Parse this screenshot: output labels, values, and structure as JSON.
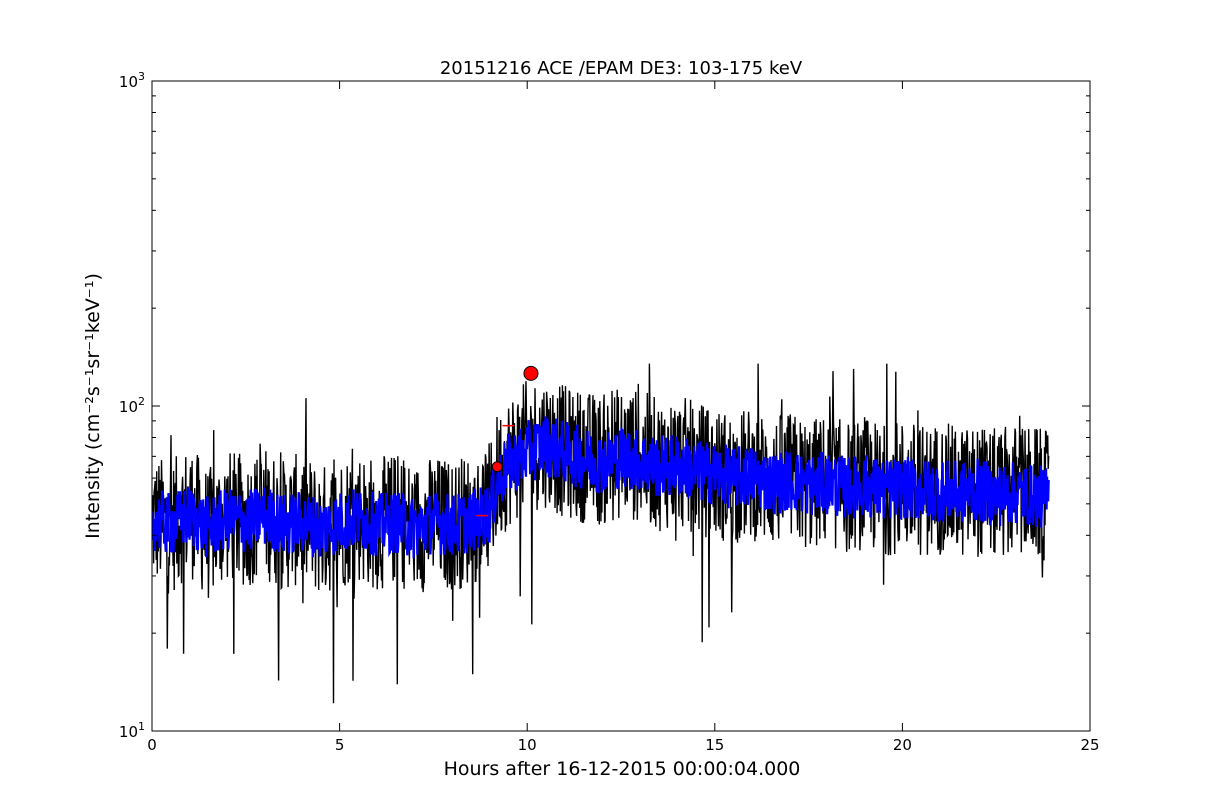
{
  "chart_data": {
    "type": "line",
    "title": "20151216 ACE /EPAM DE3: 103-175 keV",
    "xlabel": "Hours after 16-12-2015 00:00:04.000",
    "ylabel": "Intensity (cm⁻²s⁻¹sr⁻¹keV⁻¹)",
    "xlim": [
      0,
      25
    ],
    "ylim": [
      10,
      1000
    ],
    "yscale": "log",
    "grid": false,
    "x_ticks": [
      0,
      5,
      10,
      15,
      20,
      25
    ],
    "x_tick_labels": [
      "0",
      "5",
      "10",
      "15",
      "20",
      "25"
    ],
    "y_ticks": [
      {
        "base": "10",
        "exp": "1",
        "value": 10
      },
      {
        "base": "10",
        "exp": "2",
        "value": 100
      },
      {
        "base": "10",
        "exp": "3",
        "value": 1000
      }
    ],
    "series": [
      {
        "color": "#000000",
        "style": "raw",
        "x": [
          0.0,
          0.5,
          1.0,
          1.5,
          2.0,
          2.5,
          3.0,
          3.5,
          4.0,
          4.5,
          5.0,
          5.5,
          6.0,
          6.5,
          7.0,
          7.5,
          8.0,
          8.5,
          9.0,
          9.2,
          9.5,
          10.0,
          10.5,
          11.0,
          11.5,
          12.0,
          12.5,
          13.0,
          13.5,
          14.0,
          14.5,
          15.0,
          15.5,
          16.0,
          16.5,
          17.0,
          17.5,
          18.0,
          18.5,
          19.0,
          19.5,
          20.0,
          20.5,
          21.0,
          21.5,
          22.0,
          22.5,
          23.0,
          23.5,
          23.9
        ],
        "y": [
          45,
          42,
          48,
          40,
          46,
          44,
          47,
          43,
          45,
          41,
          44,
          46,
          43,
          45,
          42,
          44,
          43,
          45,
          48,
          60,
          68,
          75,
          78,
          72,
          70,
          68,
          72,
          70,
          66,
          68,
          64,
          62,
          60,
          62,
          58,
          60,
          57,
          59,
          56,
          58,
          55,
          57,
          55,
          56,
          54,
          55,
          53,
          55,
          54,
          52
        ],
        "noise_range": [
          12,
          135
        ]
      },
      {
        "color": "#0000ff",
        "style": "smoothed",
        "x": [
          0.0,
          0.5,
          1.0,
          1.5,
          2.0,
          2.5,
          3.0,
          3.5,
          4.0,
          4.5,
          5.0,
          5.5,
          6.0,
          6.5,
          7.0,
          7.5,
          8.0,
          8.5,
          9.0,
          9.2,
          9.5,
          10.0,
          10.5,
          11.0,
          11.5,
          12.0,
          12.5,
          13.0,
          13.5,
          14.0,
          14.5,
          15.0,
          15.5,
          16.0,
          16.5,
          17.0,
          17.5,
          18.0,
          18.5,
          19.0,
          19.5,
          20.0,
          20.5,
          21.0,
          21.5,
          22.0,
          22.5,
          23.0,
          23.5,
          23.9
        ],
        "y": [
          45,
          43,
          46,
          42,
          45,
          44,
          46,
          43,
          44,
          42,
          44,
          45,
          43,
          44,
          42,
          44,
          43,
          44,
          47,
          58,
          66,
          72,
          76,
          72,
          69,
          67,
          70,
          68,
          65,
          66,
          63,
          62,
          60,
          61,
          58,
          59,
          57,
          58,
          56,
          57,
          55,
          56,
          55,
          55,
          54,
          55,
          53,
          54,
          53,
          52
        ]
      }
    ],
    "markers": [
      {
        "x": 9.2,
        "y": 65,
        "shape": "circle",
        "color": "#ff0000"
      },
      {
        "x": 10.1,
        "y": 126,
        "shape": "circle",
        "color": "#ff0000"
      },
      {
        "x": 8.8,
        "y": 46,
        "shape": "hline",
        "color": "#ff0000"
      },
      {
        "x": 9.5,
        "y": 87,
        "shape": "hline",
        "color": "#ff0000"
      }
    ]
  }
}
